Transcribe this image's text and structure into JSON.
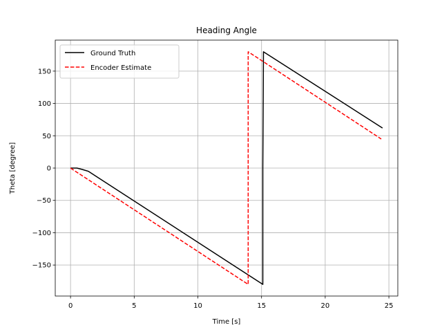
{
  "chart_data": {
    "type": "line",
    "title": "Heading Angle",
    "xlabel": "Time [s]",
    "ylabel": "Theta [degree]",
    "xlim": [
      -1.2,
      25.7
    ],
    "ylim": [
      -198,
      198
    ],
    "xticks": [
      0,
      5,
      10,
      15,
      20,
      25
    ],
    "yticks": [
      -150,
      -100,
      -50,
      0,
      50,
      100,
      150
    ],
    "xtick_labels": [
      "0",
      "5",
      "10",
      "15",
      "20",
      "25"
    ],
    "ytick_labels": [
      "−150",
      "−100",
      "−50",
      "0",
      "50",
      "100",
      "150"
    ],
    "grid": true,
    "legend_position": "upper-left",
    "series": [
      {
        "name": "Ground Truth",
        "color": "#000000",
        "style": "solid",
        "points": [
          [
            0,
            0
          ],
          [
            0.5,
            0
          ],
          [
            0.9,
            -2
          ],
          [
            1.4,
            -5
          ],
          [
            15.1,
            -180
          ],
          [
            15.1,
            0
          ],
          [
            15.15,
            180
          ],
          [
            24.5,
            62
          ]
        ]
      },
      {
        "name": "Encoder Estimate",
        "color": "#ff0000",
        "style": "dashed",
        "points": [
          [
            0,
            0
          ],
          [
            13.95,
            -180
          ],
          [
            13.95,
            180
          ],
          [
            24.4,
            45
          ]
        ]
      }
    ]
  }
}
